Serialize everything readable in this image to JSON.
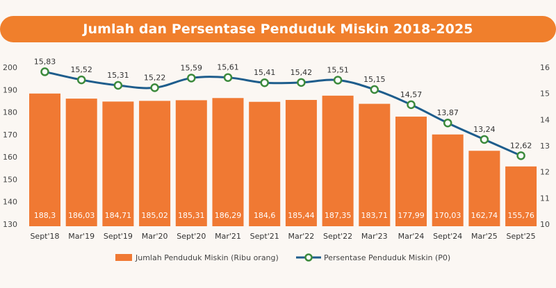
{
  "title": "Jumlah dan Persentase Penduduk Miskin 2018-2025",
  "colors": {
    "bar": "#f07933",
    "line": "#1e5d8c",
    "marker_fill": "#ffffff",
    "marker_stroke": "#3c8a3c",
    "banner": "#f07f2c"
  },
  "chart_data": {
    "type": "bar+line",
    "categories": [
      "Sept'18",
      "Mar'19",
      "Sept'19",
      "Mar'20",
      "Sept'20",
      "Mar'21",
      "Sept'21",
      "Mar'22",
      "Sept'22",
      "Mar'23",
      "Mar'24",
      "Sept'24",
      "Mar'25",
      "Sept'25"
    ],
    "series": [
      {
        "name": "Jumlah Penduduk Miskin (Ribu orang)",
        "type": "bar",
        "axis": "left",
        "values": [
          188.3,
          186.03,
          184.71,
          185.02,
          185.31,
          186.29,
          184.6,
          185.44,
          187.35,
          183.71,
          177.99,
          170.03,
          162.74,
          155.76
        ],
        "labels": [
          "188,3",
          "186,03",
          "184,71",
          "185,02",
          "185,31",
          "186,29",
          "184,6",
          "185,44",
          "187,35",
          "183,71",
          "177,99",
          "170,03",
          "162,74",
          "155,76"
        ]
      },
      {
        "name": "Persentase Penduduk Miskin (P0)",
        "type": "line",
        "axis": "right",
        "values": [
          15.83,
          15.52,
          15.31,
          15.22,
          15.59,
          15.61,
          15.41,
          15.42,
          15.51,
          15.15,
          14.57,
          13.87,
          13.24,
          12.62
        ],
        "labels": [
          "15,83",
          "15,52",
          "15,31",
          "15,22",
          "15,59",
          "15,61",
          "15,41",
          "15,42",
          "15,51",
          "15,15",
          "14,57",
          "13,87",
          "13,24",
          "12,62"
        ]
      }
    ],
    "left_axis": {
      "range": [
        130,
        200
      ],
      "ticks": [
        "130",
        "140",
        "150",
        "160",
        "170",
        "180",
        "190",
        "200"
      ]
    },
    "right_axis": {
      "range": [
        10,
        16
      ],
      "ticks": [
        "10",
        "11",
        "12",
        "13",
        "14",
        "15",
        "16"
      ]
    },
    "legend": {
      "position": "bottom",
      "items": [
        {
          "label": "Jumlah Penduduk Miskin (Ribu orang)",
          "kind": "bar"
        },
        {
          "label": "Persentase Penduduk Miskin (P0)",
          "kind": "line"
        }
      ]
    }
  }
}
